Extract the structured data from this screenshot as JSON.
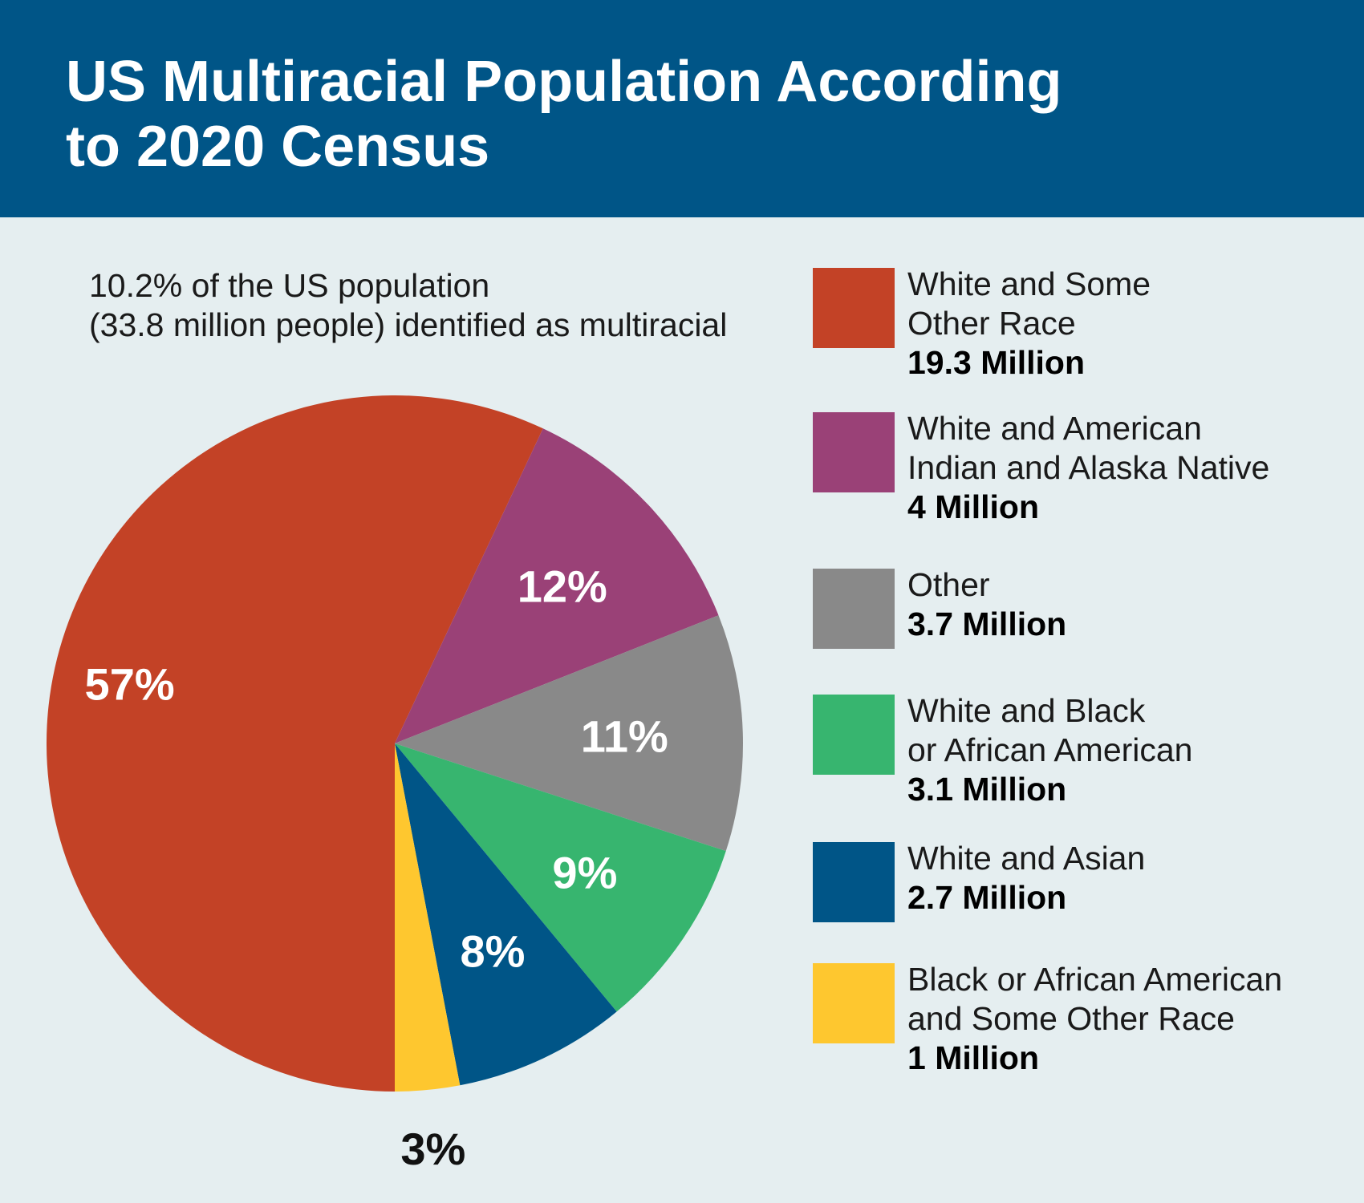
{
  "header": {
    "title_line1": "US Multiracial Population According",
    "title_line2": "to 2020 Census"
  },
  "subtitle": {
    "line1": "10.2% of the US population",
    "line2": "(33.8 million people) identified as multiracial"
  },
  "chart_data": {
    "type": "pie",
    "title": "US Multiracial Population According to 2020 Census",
    "series": [
      {
        "name": "",
        "values": [
          57,
          12,
          11,
          9,
          8,
          3
        ],
        "labels": [
          "57%",
          "12%",
          "11%",
          "9%",
          "8%",
          "3%"
        ],
        "colors": [
          "#c34226",
          "#9a4177",
          "#898989",
          "#37b56f",
          "#005587",
          "#fec72f"
        ]
      }
    ],
    "categories": [
      "White and Some Other Race",
      "White and American Indian and Alaska Native",
      "Other",
      "White and Black or African American",
      "White and Asian",
      "Black or African American and Some Other Race"
    ],
    "label_colors": [
      "#ffffff",
      "#ffffff",
      "#ffffff",
      "#ffffff",
      "#ffffff",
      "#111111"
    ],
    "start": "bottom-center",
    "direction": "clockwise",
    "legend_position": "right"
  },
  "legend": [
    {
      "lines": [
        "White and Some",
        "Other Race"
      ],
      "value": "19.3 Million",
      "color": "#c34226"
    },
    {
      "lines": [
        "White and American",
        "Indian and Alaska Native"
      ],
      "value": "4 Million",
      "color": "#9a4177"
    },
    {
      "lines": [
        "Other"
      ],
      "value": "3.7 Million",
      "color": "#898989"
    },
    {
      "lines": [
        "White and Black",
        "or African American"
      ],
      "value": "3.1 Million",
      "color": "#37b56f"
    },
    {
      "lines": [
        "White and Asian"
      ],
      "value": "2.7 Million",
      "color": "#005587"
    },
    {
      "lines": [
        "Black or African American",
        "and Some Other Race"
      ],
      "value": "1 Million",
      "color": "#fec72f"
    }
  ]
}
